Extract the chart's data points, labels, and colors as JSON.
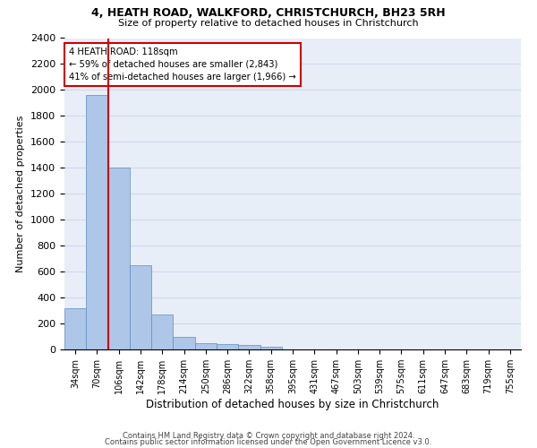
{
  "title1": "4, HEATH ROAD, WALKFORD, CHRISTCHURCH, BH23 5RH",
  "title2": "Size of property relative to detached houses in Christchurch",
  "xlabel": "Distribution of detached houses by size in Christchurch",
  "ylabel": "Number of detached properties",
  "bar_labels": [
    "34sqm",
    "70sqm",
    "106sqm",
    "142sqm",
    "178sqm",
    "214sqm",
    "250sqm",
    "286sqm",
    "322sqm",
    "358sqm",
    "395sqm",
    "431sqm",
    "467sqm",
    "503sqm",
    "539sqm",
    "575sqm",
    "611sqm",
    "647sqm",
    "683sqm",
    "719sqm",
    "755sqm"
  ],
  "bar_values": [
    320,
    1960,
    1400,
    650,
    270,
    100,
    50,
    40,
    35,
    22,
    0,
    0,
    0,
    0,
    0,
    0,
    0,
    0,
    0,
    0,
    0
  ],
  "bar_color": "#aec6e8",
  "bar_edge_color": "#5a8fc2",
  "vline_color": "#cc0000",
  "annotation_text": "4 HEATH ROAD: 118sqm\n← 59% of detached houses are smaller (2,843)\n41% of semi-detached houses are larger (1,966) →",
  "annotation_box_color": "#cc0000",
  "ylim": [
    0,
    2400
  ],
  "yticks": [
    0,
    200,
    400,
    600,
    800,
    1000,
    1200,
    1400,
    1600,
    1800,
    2000,
    2200,
    2400
  ],
  "footnote1": "Contains HM Land Registry data © Crown copyright and database right 2024.",
  "footnote2": "Contains public sector information licensed under the Open Government Licence v3.0.",
  "grid_color": "#d0d8e8",
  "background_color": "#e8eef8"
}
